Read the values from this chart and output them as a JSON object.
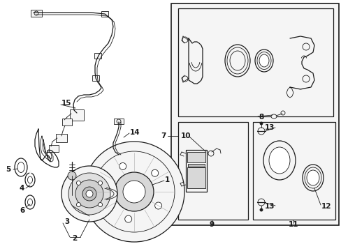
{
  "bg_color": "#ffffff",
  "figure_width": 4.89,
  "figure_height": 3.6,
  "dpi": 100,
  "lc": "#1a1a1a",
  "lw_main": 1.2,
  "lw_part": 0.9,
  "lw_thin": 0.6,
  "label_fontsize": 7.5,
  "label_fontweight": "bold",
  "box_fill": "#ebebeb",
  "parts_fill": "#f5f5f5"
}
